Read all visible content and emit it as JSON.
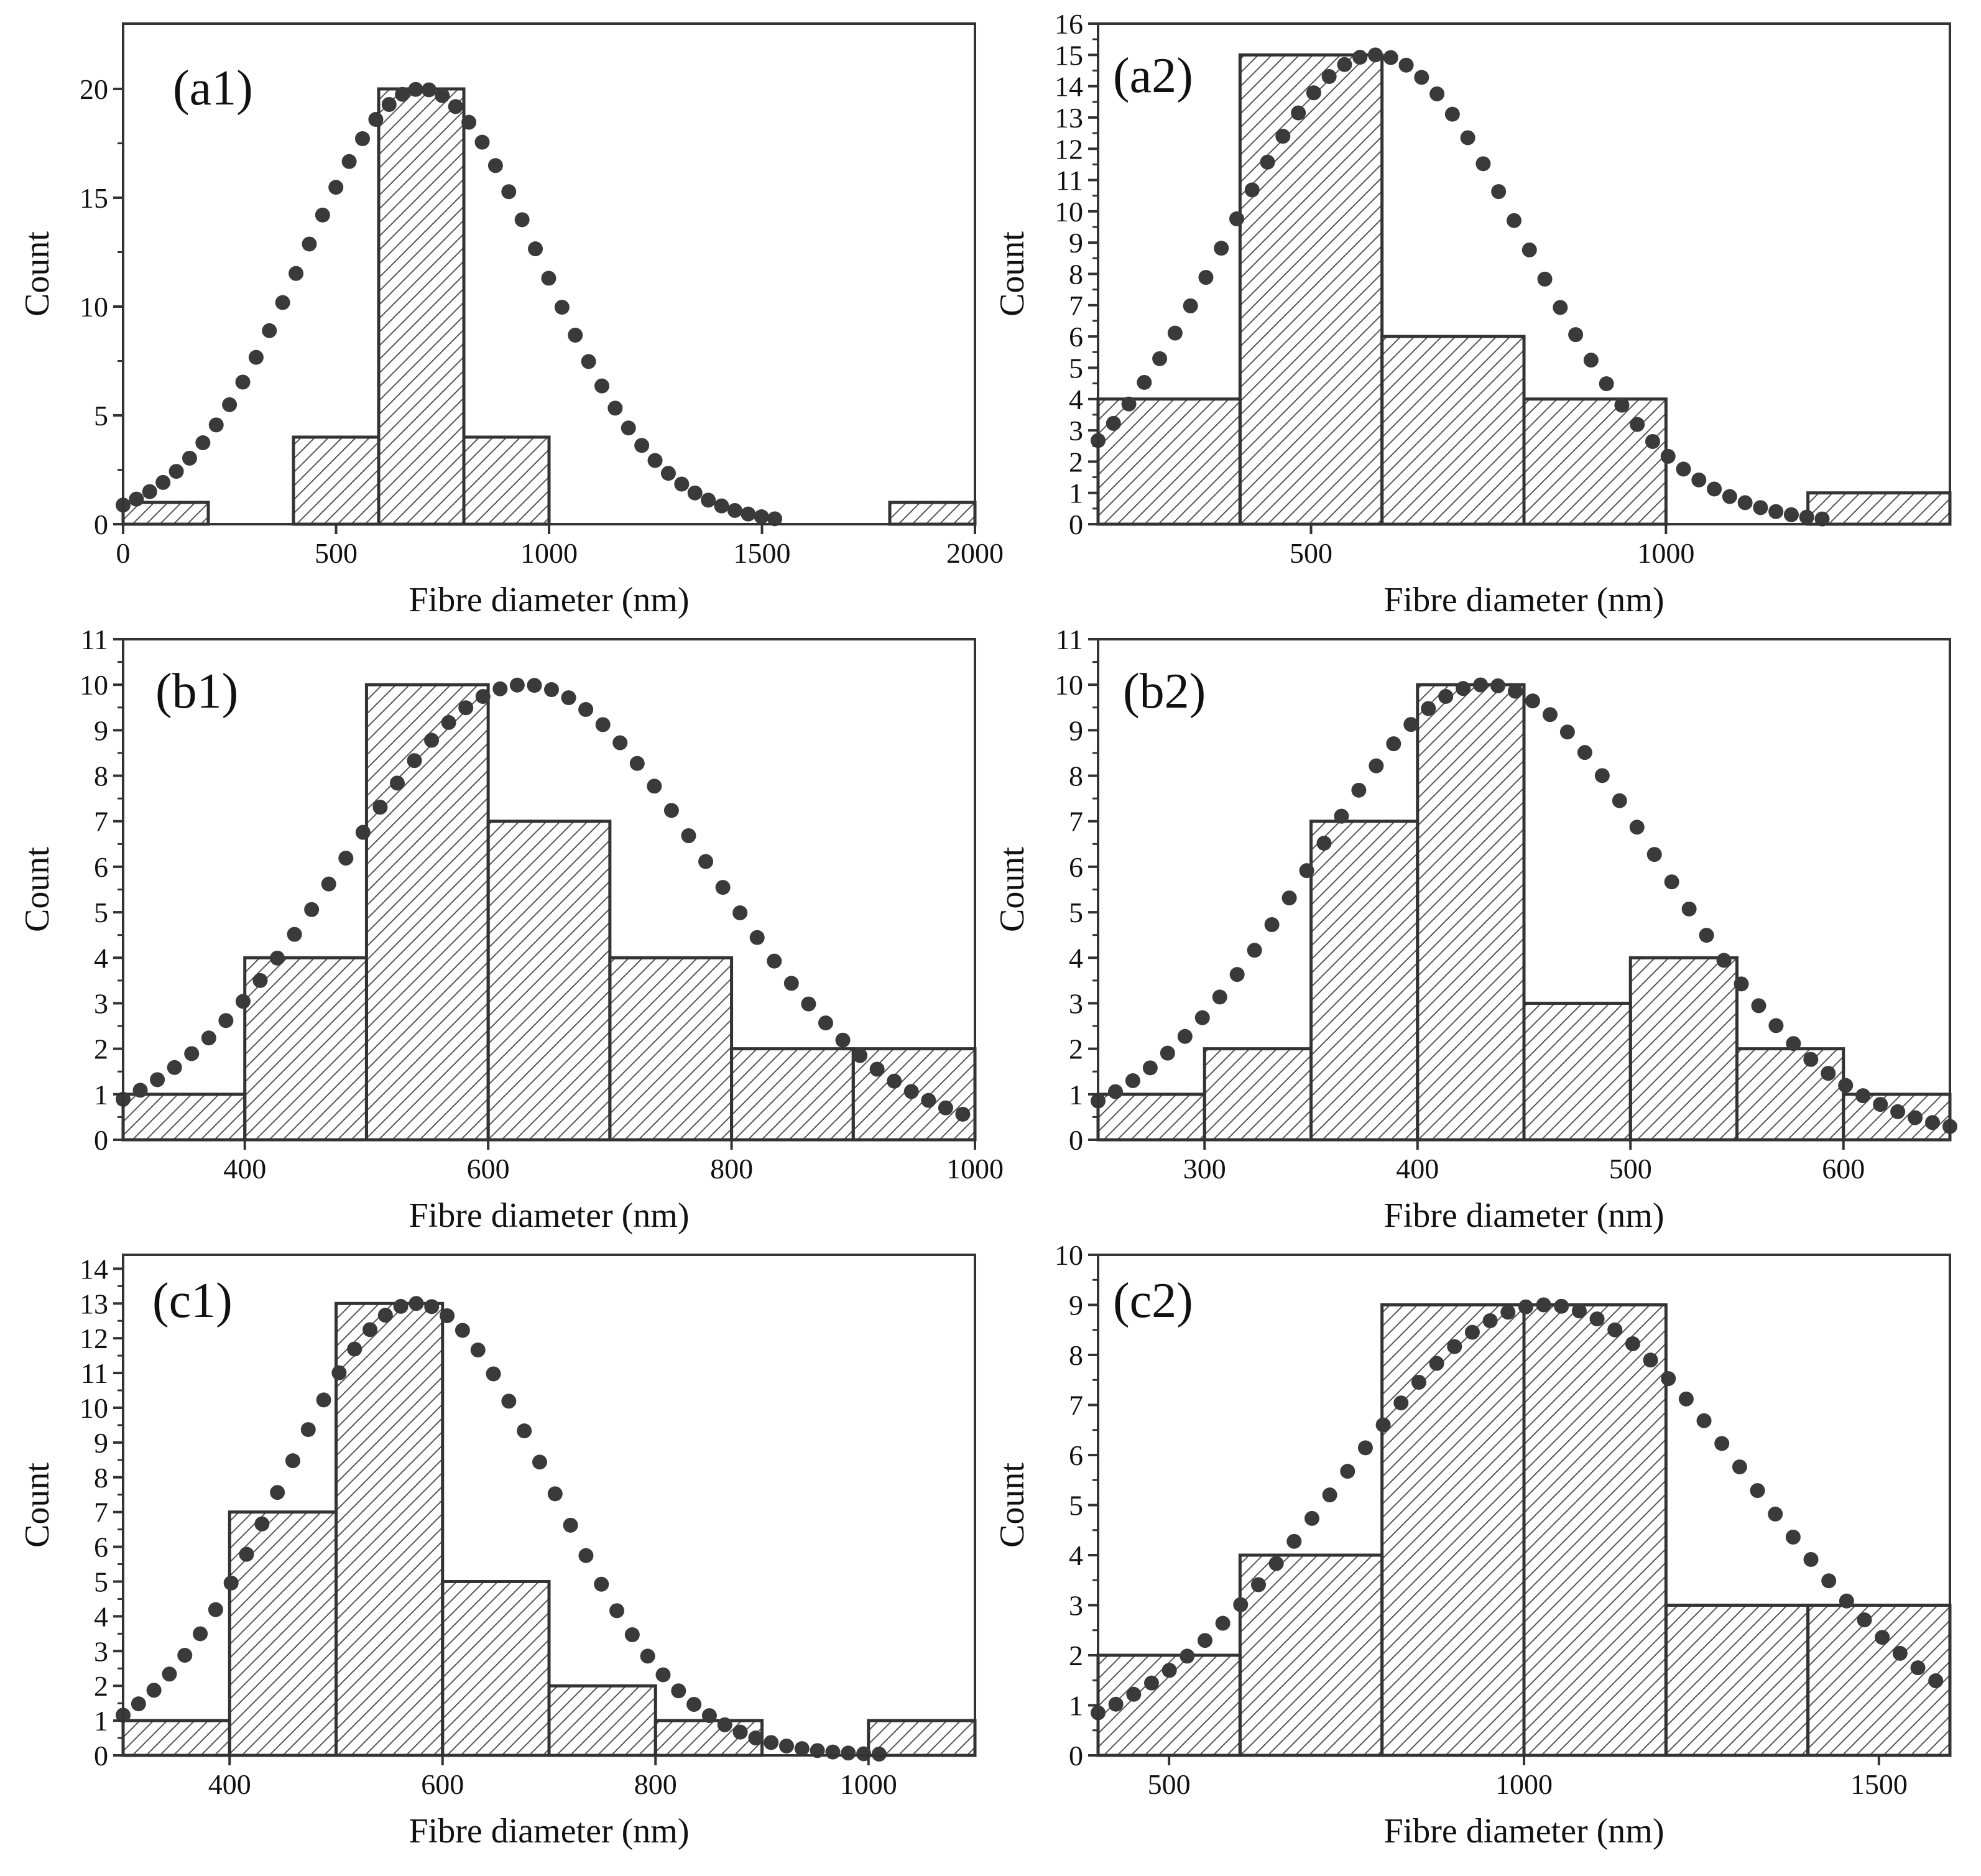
{
  "figure": {
    "colors": {
      "axis": "#333333",
      "bar_edge": "#333333",
      "hatch": "#555555",
      "fit_dots": "#3a3a3a",
      "background": "#ffffff"
    }
  },
  "chart_data": [
    {
      "id": "a1",
      "type": "bar",
      "panel_label": "(a1)",
      "xlabel": "Fibre diameter (nm)",
      "ylabel": "Count",
      "xlim": [
        0,
        2000
      ],
      "ylim": [
        0,
        23
      ],
      "x_ticks": [
        0,
        500,
        1000,
        1500,
        2000
      ],
      "y_ticks": [
        0,
        5,
        10,
        15,
        20
      ],
      "bars": [
        {
          "start": 0,
          "end": 200,
          "count": 1
        },
        {
          "start": 400,
          "end": 600,
          "count": 4
        },
        {
          "start": 600,
          "end": 800,
          "count": 20
        },
        {
          "start": 800,
          "end": 1000,
          "count": 4
        },
        {
          "start": 1800,
          "end": 2000,
          "count": 1
        }
      ],
      "fit": {
        "type": "gaussian",
        "peak_x": 700,
        "peak_y": 20,
        "sigma": 280,
        "x_range": [
          0,
          1530
        ],
        "points": 50
      }
    },
    {
      "id": "a2",
      "type": "bar",
      "panel_label": "(a2)",
      "xlabel": "Fibre diameter (nm)",
      "ylabel": "Count",
      "xlim": [
        200,
        1400
      ],
      "ylim": [
        0,
        16
      ],
      "x_ticks": [
        500,
        1000
      ],
      "y_ticks": [
        0,
        1,
        2,
        3,
        4,
        5,
        6,
        7,
        8,
        9,
        10,
        11,
        12,
        13,
        14,
        15,
        16
      ],
      "bars": [
        {
          "start": 200,
          "end": 400,
          "count": 4
        },
        {
          "start": 400,
          "end": 600,
          "count": 15
        },
        {
          "start": 600,
          "end": 800,
          "count": 6
        },
        {
          "start": 800,
          "end": 1000,
          "count": 4
        },
        {
          "start": 1200,
          "end": 1400,
          "count": 1
        }
      ],
      "fit": {
        "type": "gaussian",
        "peak_x": 590,
        "peak_y": 15,
        "sigma": 210,
        "x_range": [
          200,
          1220
        ],
        "points": 48
      }
    },
    {
      "id": "b1",
      "type": "bar",
      "panel_label": "(b1)",
      "xlabel": "Fibre diameter (nm)",
      "ylabel": "Count",
      "xlim": [
        300,
        1000
      ],
      "ylim": [
        0,
        11
      ],
      "x_ticks": [
        400,
        600,
        800,
        1000
      ],
      "y_ticks": [
        0,
        1,
        2,
        3,
        4,
        5,
        6,
        7,
        8,
        9,
        10,
        11
      ],
      "bars": [
        {
          "start": 300,
          "end": 400,
          "count": 1
        },
        {
          "start": 400,
          "end": 500,
          "count": 4
        },
        {
          "start": 500,
          "end": 600,
          "count": 10
        },
        {
          "start": 600,
          "end": 700,
          "count": 7
        },
        {
          "start": 700,
          "end": 800,
          "count": 4
        },
        {
          "start": 800,
          "end": 900,
          "count": 2
        },
        {
          "start": 900,
          "end": 1000,
          "count": 2
        }
      ],
      "fit": {
        "type": "gaussian",
        "peak_x": 630,
        "peak_y": 10,
        "sigma": 150,
        "x_range": [
          300,
          990
        ],
        "points": 50
      }
    },
    {
      "id": "b2",
      "type": "bar",
      "panel_label": "(b2)",
      "xlabel": "Fibre diameter (nm)",
      "ylabel": "Count",
      "xlim": [
        250,
        650
      ],
      "ylim": [
        0,
        11
      ],
      "x_ticks": [
        300,
        400,
        500,
        600
      ],
      "y_ticks": [
        0,
        1,
        2,
        3,
        4,
        5,
        6,
        7,
        8,
        9,
        10,
        11
      ],
      "bars": [
        {
          "start": 250,
          "end": 300,
          "count": 1
        },
        {
          "start": 300,
          "end": 350,
          "count": 2
        },
        {
          "start": 350,
          "end": 400,
          "count": 7
        },
        {
          "start": 400,
          "end": 450,
          "count": 10
        },
        {
          "start": 450,
          "end": 500,
          "count": 3
        },
        {
          "start": 500,
          "end": 550,
          "count": 4
        },
        {
          "start": 550,
          "end": 600,
          "count": 2
        },
        {
          "start": 600,
          "end": 650,
          "count": 1
        }
      ],
      "fit": {
        "type": "gaussian",
        "peak_x": 432,
        "peak_y": 10,
        "sigma": 82,
        "x_range": [
          250,
          650
        ],
        "points": 50
      }
    },
    {
      "id": "c1",
      "type": "bar",
      "panel_label": "(c1)",
      "xlabel": "Fibre diameter (nm)",
      "ylabel": "Count",
      "xlim": [
        300,
        1100
      ],
      "ylim": [
        0,
        14.4
      ],
      "x_ticks": [
        400,
        600,
        800,
        1000
      ],
      "y_ticks": [
        0,
        1,
        2,
        3,
        4,
        5,
        6,
        7,
        8,
        9,
        10,
        11,
        12,
        13,
        14
      ],
      "bars": [
        {
          "start": 300,
          "end": 400,
          "count": 1
        },
        {
          "start": 400,
          "end": 500,
          "count": 7
        },
        {
          "start": 500,
          "end": 600,
          "count": 13
        },
        {
          "start": 600,
          "end": 700,
          "count": 5
        },
        {
          "start": 700,
          "end": 800,
          "count": 2
        },
        {
          "start": 800,
          "end": 900,
          "count": 1
        },
        {
          "start": 1000,
          "end": 1100,
          "count": 1
        }
      ],
      "fit": {
        "type": "gaussian",
        "peak_x": 575,
        "peak_y": 13,
        "sigma": 125,
        "x_range": [
          300,
          1010
        ],
        "points": 50
      }
    },
    {
      "id": "c2",
      "type": "bar",
      "panel_label": "(c2)",
      "xlabel": "Fibre diameter (nm)",
      "ylabel": "Count",
      "xlim": [
        400,
        1600
      ],
      "ylim": [
        0,
        10
      ],
      "x_ticks": [
        500,
        1000,
        1500
      ],
      "y_ticks": [
        0,
        1,
        2,
        3,
        4,
        5,
        6,
        7,
        8,
        9,
        10
      ],
      "bars": [
        {
          "start": 400,
          "end": 600,
          "count": 2
        },
        {
          "start": 600,
          "end": 800,
          "count": 4
        },
        {
          "start": 800,
          "end": 1000,
          "count": 9
        },
        {
          "start": 1000,
          "end": 1200,
          "count": 9
        },
        {
          "start": 1200,
          "end": 1400,
          "count": 3
        },
        {
          "start": 1400,
          "end": 1600,
          "count": 3
        }
      ],
      "fit": {
        "type": "gaussian",
        "peak_x": 1030,
        "peak_y": 9,
        "sigma": 290,
        "x_range": [
          400,
          1580
        ],
        "points": 48
      }
    }
  ]
}
